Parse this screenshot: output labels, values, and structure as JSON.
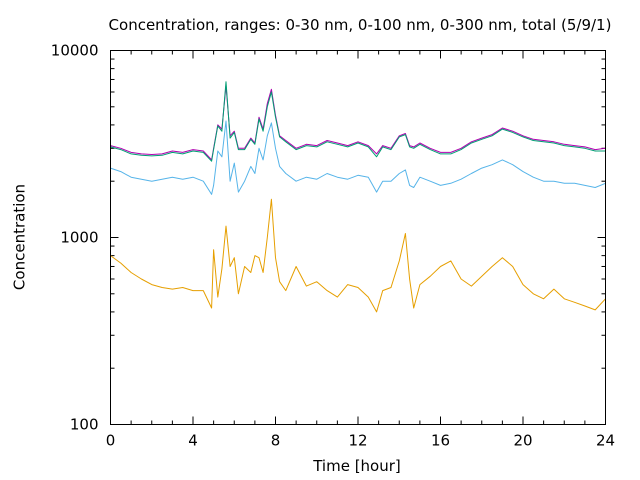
{
  "chart_data": {
    "type": "line",
    "title": "Concentration, ranges: 0-30 nm, 0-100 nm, 0-300 nm, total (5/9/1)",
    "xlabel": "Time [hour]",
    "ylabel": "Concentration",
    "xlim": [
      0,
      24
    ],
    "ylim": [
      100,
      10000
    ],
    "yscale": "log",
    "grid": false,
    "x_ticks": [
      0,
      4,
      8,
      12,
      16,
      20,
      24
    ],
    "x_tick_labels": [
      "0",
      "4",
      "8",
      "12",
      "16",
      "20",
      "24"
    ],
    "y_ticks": [
      100,
      1000,
      10000
    ],
    "y_tick_labels": [
      "100",
      "1000",
      "10000"
    ],
    "x": [
      0,
      0.5,
      1,
      1.5,
      2,
      2.5,
      3,
      3.5,
      4,
      4.5,
      4.9,
      5.0,
      5.2,
      5.4,
      5.6,
      5.8,
      6.0,
      6.2,
      6.5,
      6.8,
      7.0,
      7.2,
      7.4,
      7.6,
      7.8,
      8.0,
      8.2,
      8.5,
      9.0,
      9.5,
      10.0,
      10.5,
      11.0,
      11.5,
      12.0,
      12.5,
      12.9,
      13.2,
      13.6,
      14.0,
      14.3,
      14.5,
      14.7,
      15.0,
      15.5,
      16.0,
      16.5,
      17.0,
      17.5,
      18.0,
      18.5,
      19.0,
      19.5,
      20.0,
      20.5,
      21.0,
      21.5,
      22.0,
      22.5,
      23.0,
      23.5,
      24.0
    ],
    "series": [
      {
        "color": "#b000b0",
        "values": [
          3100,
          3000,
          2850,
          2800,
          2780,
          2800,
          2900,
          2850,
          2950,
          2900,
          2600,
          3000,
          4000,
          3800,
          6500,
          3500,
          3700,
          3000,
          3000,
          3400,
          3200,
          4400,
          3800,
          5200,
          6200,
          4500,
          3500,
          3300,
          3000,
          3150,
          3100,
          3300,
          3200,
          3100,
          3250,
          3100,
          2800,
          3100,
          3000,
          3500,
          3600,
          3100,
          3050,
          3200,
          3000,
          2850,
          2850,
          3000,
          3250,
          3400,
          3550,
          3850,
          3700,
          3500,
          3350,
          3300,
          3250,
          3150,
          3100,
          3050,
          2950,
          3000
        ]
      },
      {
        "color": "#009e73",
        "values": [
          3050,
          2950,
          2800,
          2750,
          2730,
          2750,
          2850,
          2800,
          2900,
          2850,
          2560,
          2950,
          3950,
          3700,
          6800,
          3400,
          3650,
          2950,
          2950,
          3350,
          3150,
          4300,
          3700,
          5000,
          6000,
          4400,
          3450,
          3250,
          2950,
          3100,
          3050,
          3250,
          3150,
          3050,
          3200,
          3050,
          2700,
          3050,
          2950,
          3450,
          3550,
          3050,
          3000,
          3150,
          2950,
          2800,
          2800,
          2950,
          3200,
          3350,
          3500,
          3800,
          3650,
          3450,
          3300,
          3250,
          3200,
          3100,
          3050,
          3000,
          2900,
          2900
        ]
      },
      {
        "color": "#56b4e9",
        "values": [
          2350,
          2250,
          2100,
          2050,
          2000,
          2050,
          2100,
          2050,
          2100,
          2000,
          1700,
          1900,
          2900,
          2700,
          4200,
          2000,
          2500,
          1750,
          2000,
          2400,
          2200,
          3000,
          2600,
          3500,
          4100,
          3000,
          2400,
          2200,
          2000,
          2100,
          2050,
          2200,
          2100,
          2050,
          2150,
          2100,
          1750,
          2000,
          2000,
          2200,
          2300,
          1900,
          1850,
          2100,
          2000,
          1900,
          1950,
          2050,
          2200,
          2350,
          2450,
          2600,
          2450,
          2250,
          2100,
          2000,
          2000,
          1950,
          1950,
          1900,
          1850,
          1950
        ]
      },
      {
        "color": "#e69f00",
        "values": [
          800,
          730,
          650,
          600,
          560,
          540,
          530,
          540,
          520,
          520,
          420,
          860,
          480,
          680,
          1150,
          700,
          780,
          500,
          700,
          650,
          800,
          780,
          650,
          1000,
          1600,
          780,
          580,
          520,
          700,
          550,
          580,
          520,
          480,
          560,
          540,
          480,
          400,
          520,
          540,
          750,
          1050,
          600,
          420,
          560,
          620,
          700,
          750,
          600,
          550,
          620,
          700,
          780,
          700,
          560,
          500,
          470,
          530,
          470,
          450,
          430,
          410,
          470
        ]
      }
    ]
  }
}
